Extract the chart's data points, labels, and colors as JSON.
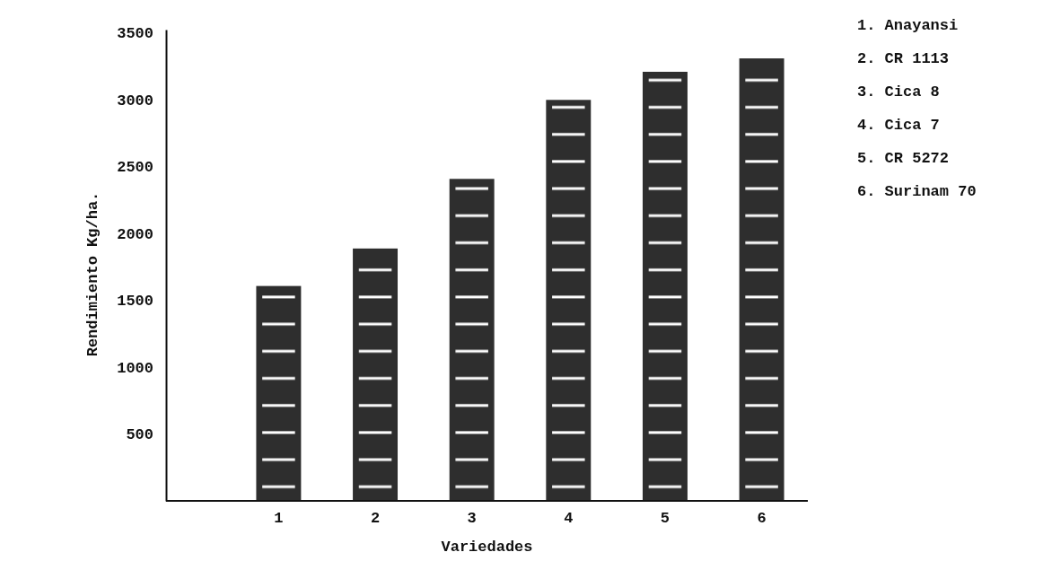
{
  "chart_data": {
    "type": "bar",
    "xlabel": "Variedades",
    "ylabel": "Rendimiento Kg/ha.",
    "categories": [
      "1",
      "2",
      "3",
      "4",
      "5",
      "6"
    ],
    "values": [
      1600,
      1880,
      2400,
      2990,
      3200,
      3300
    ],
    "color": "#2e2e2e",
    "ylim": [
      0,
      3520
    ],
    "yticks": [
      500,
      1000,
      1500,
      2000,
      2500,
      3000,
      3500
    ],
    "grid": false,
    "annotations": [
      "1. Anayansi",
      "2. CR 1113",
      "3. Cica 8",
      "4. Cica 7",
      "5. CR 5272",
      "6. Surinam 70"
    ]
  }
}
